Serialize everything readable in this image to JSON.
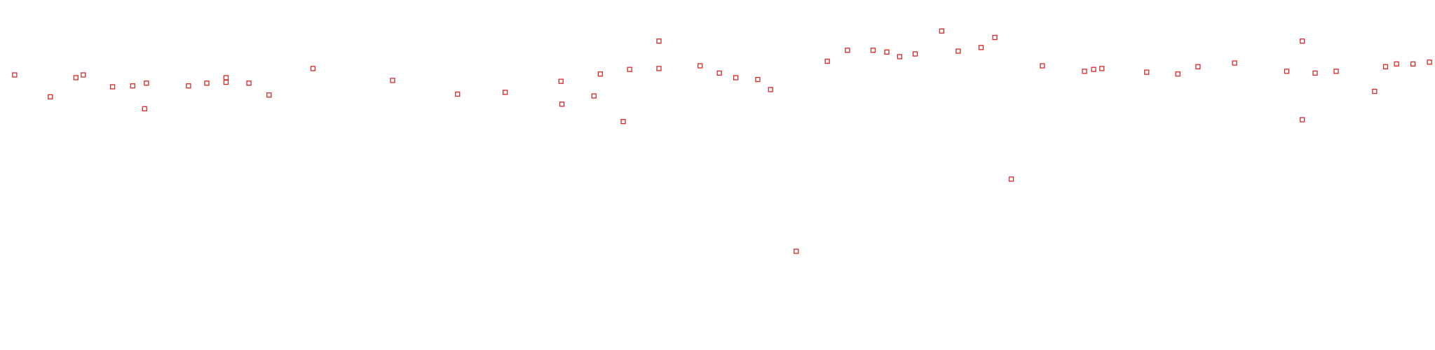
{
  "chart_data": {
    "type": "scatter",
    "color": "#d62728",
    "marker": "square",
    "xlim": [
      0,
      1568
    ],
    "ylim": [
      383,
      0
    ],
    "x": [
      16,
      55,
      83,
      91,
      123,
      145,
      158,
      160,
      206,
      226,
      247,
      247,
      272,
      294,
      342,
      429,
      500,
      552,
      613,
      614,
      649,
      656,
      681,
      688,
      720,
      720,
      765,
      786,
      804,
      828,
      842,
      870,
      904,
      926,
      954,
      969,
      983,
      1000,
      1029,
      1047,
      1072,
      1087,
      1105,
      1139,
      1185,
      1195,
      1204,
      1253,
      1287,
      1309,
      1349,
      1406,
      1423,
      1423,
      1437,
      1460,
      1502,
      1514,
      1526,
      1544,
      1562
    ],
    "values": [
      82,
      106,
      85,
      82,
      95,
      94,
      119,
      91,
      94,
      91,
      85,
      90,
      91,
      104,
      75,
      88,
      103,
      101,
      89,
      114,
      105,
      81,
      133,
      76,
      45,
      75,
      72,
      80,
      85,
      87,
      98,
      275,
      67,
      55,
      55,
      57,
      62,
      59,
      34,
      56,
      52,
      41,
      196,
      72,
      78,
      76,
      75,
      79,
      81,
      73,
      69,
      78,
      45,
      131,
      80,
      78,
      100,
      73,
      70,
      70,
      68
    ]
  }
}
